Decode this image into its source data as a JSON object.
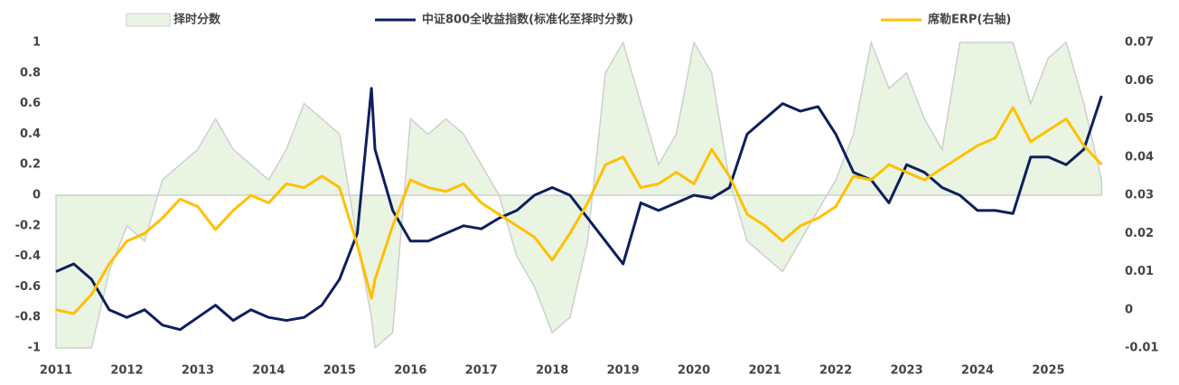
{
  "chart_data": {
    "type": "line",
    "x": [
      2011,
      2011.25,
      2011.5,
      2011.75,
      2012,
      2012.25,
      2012.5,
      2012.75,
      2013,
      2013.25,
      2013.5,
      2013.75,
      2014,
      2014.25,
      2014.5,
      2014.75,
      2015,
      2015.25,
      2015.45,
      2015.5,
      2015.75,
      2016,
      2016.25,
      2016.5,
      2016.75,
      2017,
      2017.25,
      2017.5,
      2017.75,
      2018,
      2018.25,
      2018.5,
      2018.75,
      2019,
      2019.25,
      2019.5,
      2019.75,
      2020,
      2020.25,
      2020.5,
      2020.75,
      2021,
      2021.25,
      2021.5,
      2021.75,
      2022,
      2022.25,
      2022.5,
      2022.75,
      2023,
      2023.25,
      2023.5,
      2023.75,
      2024,
      2024.25,
      2024.5,
      2024.75,
      2025,
      2025.25,
      2025.5,
      2025.75
    ],
    "series": [
      {
        "name": "择时分数",
        "type": "area",
        "color": "#e9f4e3",
        "values": [
          -1,
          -1,
          -1,
          -0.5,
          -0.2,
          -0.3,
          0.1,
          0.2,
          0.3,
          0.5,
          0.3,
          0.2,
          0.1,
          0.3,
          0.6,
          0.5,
          0.4,
          -0.3,
          -0.8,
          -1,
          -0.9,
          0.5,
          0.4,
          0.5,
          0.4,
          0.2,
          0,
          -0.4,
          -0.6,
          -0.9,
          -0.8,
          -0.3,
          0.8,
          1,
          0.6,
          0.2,
          0.4,
          1,
          0.8,
          0.1,
          -0.3,
          -0.4,
          -0.5,
          -0.3,
          -0.1,
          0.1,
          0.4,
          1,
          0.7,
          0.8,
          0.5,
          0.3,
          1,
          1,
          1,
          1,
          0.6,
          0.9,
          1,
          0.6,
          0.1
        ]
      },
      {
        "name": "中证800全收益指数(标准化至择时分数)",
        "type": "line",
        "color": "#0d1f5c",
        "values": [
          -0.5,
          -0.45,
          -0.55,
          -0.75,
          -0.8,
          -0.75,
          -0.85,
          -0.88,
          -0.8,
          -0.72,
          -0.82,
          -0.75,
          -0.8,
          -0.82,
          -0.8,
          -0.72,
          -0.55,
          -0.25,
          0.7,
          0.3,
          -0.1,
          -0.3,
          -0.3,
          -0.25,
          -0.2,
          -0.22,
          -0.15,
          -0.1,
          0,
          0.05,
          0,
          -0.15,
          -0.3,
          -0.45,
          -0.05,
          -0.1,
          -0.05,
          0,
          -0.02,
          0.05,
          0.4,
          0.5,
          0.6,
          0.55,
          0.58,
          0.4,
          0.15,
          0.1,
          -0.05,
          0.2,
          0.15,
          0.05,
          0,
          -0.1,
          -0.1,
          -0.12,
          0.25,
          0.25,
          0.2,
          0.3,
          0.65
        ]
      },
      {
        "name": "席勒ERP(右轴)",
        "type": "line",
        "axis": "y2",
        "color": "#ffc000",
        "values": [
          0,
          -0.001,
          0.004,
          0.012,
          0.018,
          0.02,
          0.024,
          0.029,
          0.027,
          0.021,
          0.026,
          0.03,
          0.028,
          0.033,
          0.032,
          0.035,
          0.032,
          0.017,
          0.003,
          0.008,
          0.022,
          0.034,
          0.032,
          0.031,
          0.033,
          0.028,
          0.025,
          0.022,
          0.019,
          0.013,
          0.02,
          0.028,
          0.038,
          0.04,
          0.032,
          0.033,
          0.036,
          0.033,
          0.042,
          0.035,
          0.025,
          0.022,
          0.018,
          0.022,
          0.024,
          0.027,
          0.035,
          0.034,
          0.038,
          0.036,
          0.034,
          0.037,
          0.04,
          0.043,
          0.045,
          0.053,
          0.044,
          0.047,
          0.05,
          0.043,
          0.038
        ]
      }
    ],
    "xlim": [
      2011,
      2025.95
    ],
    "xticks": [
      2011,
      2012,
      2013,
      2014,
      2015,
      2016,
      2017,
      2018,
      2019,
      2020,
      2021,
      2022,
      2023,
      2024,
      2025
    ],
    "ylim": [
      -1,
      1
    ],
    "yticks": [
      -1,
      -0.8,
      -0.6,
      -0.4,
      -0.2,
      0,
      0.2,
      0.4,
      0.6,
      0.8,
      1
    ],
    "y2lim": [
      -0.01,
      0.07
    ],
    "y2ticks": [
      -0.01,
      0,
      0.01,
      0.02,
      0.03,
      0.04,
      0.05,
      0.06,
      0.07
    ],
    "legend": "top"
  }
}
